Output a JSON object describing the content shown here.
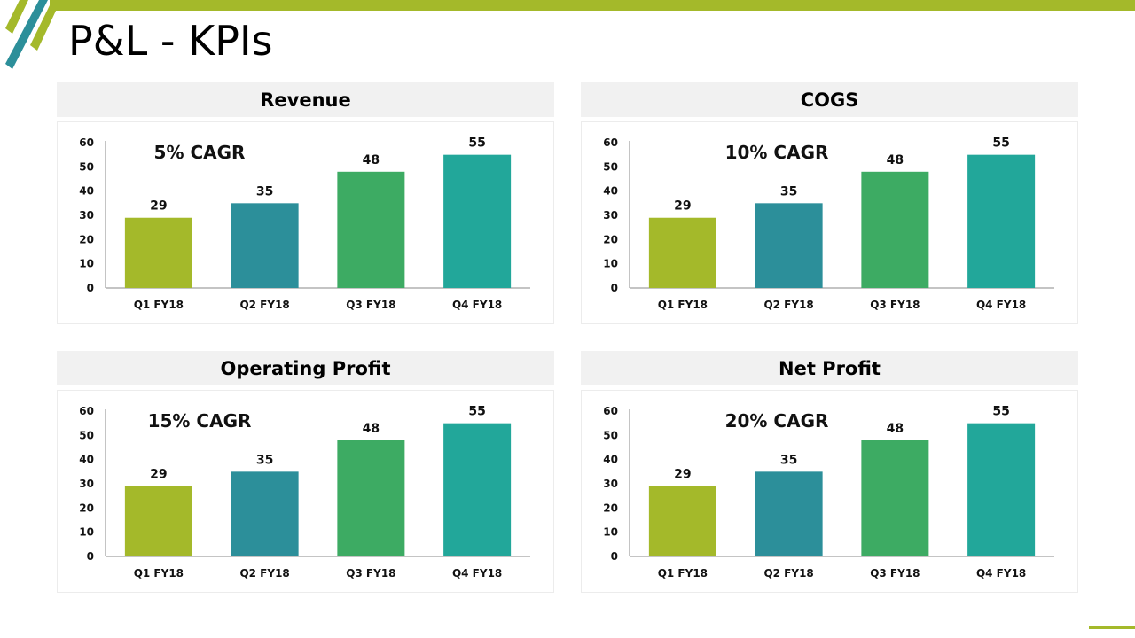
{
  "page": {
    "title": "P&L - KPIs"
  },
  "colors": {
    "accent_green": "#a4b92a",
    "accent_teal": "#2c8f9a",
    "bar_colors": [
      "#a4b92a",
      "#2c8f9a",
      "#3dab63",
      "#22a79a"
    ]
  },
  "panels": [
    {
      "heading": "Revenue",
      "cagr": "5% CAGR"
    },
    {
      "heading": "COGS",
      "cagr": "10% CAGR"
    },
    {
      "heading": "Operating Profit",
      "cagr": "15% CAGR"
    },
    {
      "heading": "Net Profit",
      "cagr": "20% CAGR"
    }
  ],
  "chart_data": [
    {
      "type": "bar",
      "title": "Revenue",
      "annotation": "5% CAGR",
      "categories": [
        "Q1 FY18",
        "Q2 FY18",
        "Q3 FY18",
        "Q4 FY18"
      ],
      "values": [
        29,
        35,
        48,
        55
      ],
      "ylim": [
        0,
        60
      ],
      "yticks": [
        0,
        10,
        20,
        30,
        40,
        50,
        60
      ],
      "xlabel": "",
      "ylabel": "",
      "grid": false
    },
    {
      "type": "bar",
      "title": "COGS",
      "annotation": "10% CAGR",
      "categories": [
        "Q1 FY18",
        "Q2 FY18",
        "Q3 FY18",
        "Q4 FY18"
      ],
      "values": [
        29,
        35,
        48,
        55
      ],
      "ylim": [
        0,
        60
      ],
      "yticks": [
        0,
        10,
        20,
        30,
        40,
        50,
        60
      ],
      "xlabel": "",
      "ylabel": "",
      "grid": false
    },
    {
      "type": "bar",
      "title": "Operating Profit",
      "annotation": "15% CAGR",
      "categories": [
        "Q1 FY18",
        "Q2 FY18",
        "Q3 FY18",
        "Q4 FY18"
      ],
      "values": [
        29,
        35,
        48,
        55
      ],
      "ylim": [
        0,
        60
      ],
      "yticks": [
        0,
        10,
        20,
        30,
        40,
        50,
        60
      ],
      "xlabel": "",
      "ylabel": "",
      "grid": false
    },
    {
      "type": "bar",
      "title": "Net Profit",
      "annotation": "20% CAGR",
      "categories": [
        "Q1 FY18",
        "Q2 FY18",
        "Q3 FY18",
        "Q4 FY18"
      ],
      "values": [
        29,
        35,
        48,
        55
      ],
      "ylim": [
        0,
        60
      ],
      "yticks": [
        0,
        10,
        20,
        30,
        40,
        50,
        60
      ],
      "xlabel": "",
      "ylabel": "",
      "grid": false
    }
  ]
}
